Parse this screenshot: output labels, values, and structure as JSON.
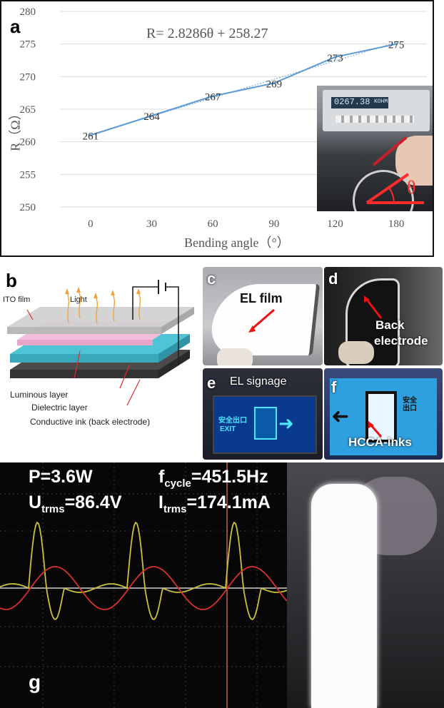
{
  "panels": {
    "a": "a",
    "b": "b",
    "c": "c",
    "d": "d",
    "e": "e",
    "f": "f",
    "g": "g"
  },
  "chart_data": {
    "type": "line",
    "equation": "R= 2.8286θ + 258.27",
    "xlabel": "Bending angle（°）",
    "ylabel": "R（Ω）",
    "categories": [
      "0",
      "30",
      "60",
      "90",
      "120",
      "180"
    ],
    "values": [
      261,
      264,
      267,
      269,
      273,
      275
    ],
    "data_labels": [
      "261",
      "264",
      "267",
      "269",
      "273",
      "275"
    ],
    "ylim": [
      250,
      280
    ],
    "yticks": [
      "250",
      "255",
      "260",
      "265",
      "270",
      "275",
      "280"
    ],
    "fit": {
      "slope": 2.8286,
      "intercept": 258.27
    },
    "grid": true,
    "line_color": "#5b9bd5"
  },
  "inset_a": {
    "meter_reading": "0267.38",
    "meter_unit": "KOHM",
    "angle_symbol": "θ"
  },
  "panel_b": {
    "labels": {
      "ito": "ITO film",
      "light": "Light",
      "luminous": "Luminous layer",
      "dielectric": "Dielectric layer",
      "conductive": "Conductive ink (back electrode)"
    }
  },
  "panel_c": {
    "label": "EL film"
  },
  "panel_d": {
    "label_line1": "Back",
    "label_line2": "electrode"
  },
  "panel_e": {
    "label": "EL signage",
    "sign_text_cn": "安全出口",
    "sign_text_en": "EXIT"
  },
  "panel_f": {
    "label": "HCCA-inks",
    "sign_text_cn": "安全出口"
  },
  "panel_g": {
    "power": "P=3.6W",
    "freq_prefix": "f",
    "freq_sub": "cycle",
    "freq_value": "=451.5Hz",
    "volt_prefix": "U",
    "volt_sub": "trms",
    "volt_value": "=86.4V",
    "curr_prefix": "I",
    "curr_sub": "trms",
    "curr_value": "=174.1mA",
    "trace_colors": {
      "voltage": "#c9c23a",
      "current": "#d83030"
    }
  }
}
